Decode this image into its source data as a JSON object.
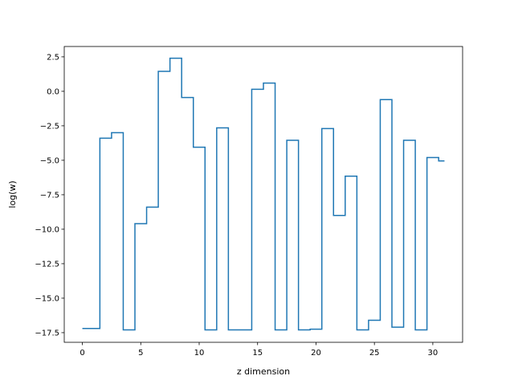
{
  "chart_data": {
    "type": "line",
    "drawstyle": "steps-mid",
    "title": "",
    "xlabel": "z dimension",
    "ylabel": "log(w)",
    "xlim": [
      -1.55,
      32.55
    ],
    "ylim": [
      -18.2,
      3.25
    ],
    "xticks": [
      0,
      5,
      10,
      15,
      20,
      25,
      30
    ],
    "xtick_labels": [
      "0",
      "5",
      "10",
      "15",
      "20",
      "25",
      "30"
    ],
    "yticks": [
      2.5,
      0.0,
      -2.5,
      -5.0,
      -7.5,
      -10.0,
      -12.5,
      -15.0,
      -17.5
    ],
    "ytick_labels": [
      "2.5",
      "0.0",
      "−2.5",
      "−5.0",
      "−7.5",
      "−10.0",
      "−12.5",
      "−15.0",
      "−17.5"
    ],
    "grid": false,
    "color": "#1f77b4",
    "x": [
      0,
      1,
      2,
      3,
      4,
      5,
      6,
      7,
      8,
      9,
      10,
      11,
      12,
      13,
      14,
      15,
      16,
      17,
      18,
      19,
      20,
      21,
      22,
      23,
      24,
      25,
      26,
      27,
      28,
      29,
      30,
      31
    ],
    "values": [
      -17.2,
      -17.2,
      -3.4,
      -3.0,
      -17.3,
      -9.6,
      -8.4,
      1.45,
      2.4,
      -0.45,
      -4.05,
      -17.3,
      -2.65,
      -17.3,
      -17.3,
      0.15,
      0.6,
      -17.3,
      -3.55,
      -17.3,
      -17.25,
      -2.7,
      -9.0,
      -6.15,
      -17.3,
      -16.6,
      -0.6,
      -17.1,
      -3.55,
      -17.3,
      -4.8,
      -5.05
    ]
  }
}
